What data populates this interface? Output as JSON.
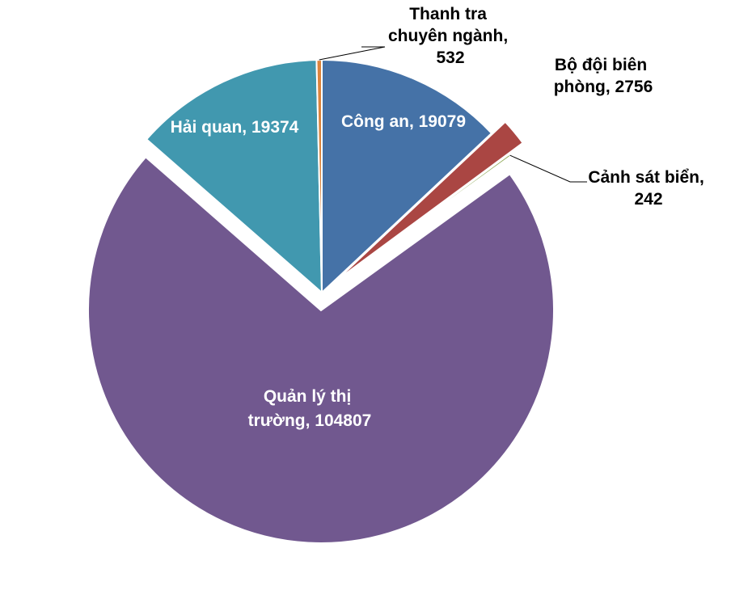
{
  "chart_data": {
    "type": "pie",
    "title": "",
    "slices": [
      {
        "name": "Công an",
        "value": 19079,
        "color": "#4572A7",
        "exploded": false,
        "label_lines": [
          "Công an, 19079"
        ],
        "label_inside": true
      },
      {
        "name": "Bộ đội biên phòng",
        "value": 2756,
        "color": "#AA4643",
        "exploded": true,
        "label_lines": [
          "Bộ đội biên",
          "phòng, 2756"
        ],
        "label_inside": false
      },
      {
        "name": "Cảnh sát biển",
        "value": 242,
        "color": "#89A54E",
        "exploded": false,
        "label_lines": [
          "Cảnh sát biển,",
          "242"
        ],
        "label_inside": false
      },
      {
        "name": "Quản lý thị trường",
        "value": 104807,
        "color": "#71588F",
        "exploded": true,
        "label_lines": [
          "Quản lý thị",
          "trường, 104807"
        ],
        "label_inside": true
      },
      {
        "name": "Hải quan",
        "value": 19374,
        "color": "#4198AF",
        "exploded": false,
        "label_lines": [
          "Hải quan, 19374"
        ],
        "label_inside": true
      },
      {
        "name": "Thanh tra chuyên ngành",
        "value": 532,
        "color": "#DB843D",
        "exploded": false,
        "label_lines": [
          "Thanh tra",
          "chuyên ngành,",
          "532"
        ],
        "label_inside": false
      }
    ],
    "legend": "none",
    "data_labels": "category name and value"
  }
}
